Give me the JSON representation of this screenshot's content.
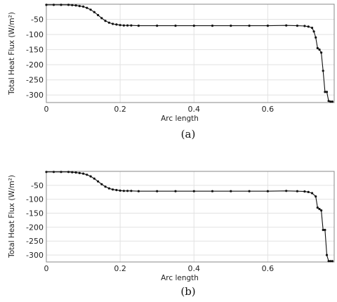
{
  "chart_data": [
    {
      "type": "line",
      "panel_label": "(a)",
      "xlabel": "Arc length",
      "ylabel": "Total Heat Flux (W/m²)",
      "xlim": [
        0,
        0.78
      ],
      "ylim": [
        -325,
        0
      ],
      "x_ticks": [
        "0",
        "0.2",
        "0.4",
        "0.6"
      ],
      "y_ticks": [
        "-50",
        "-100",
        "-150",
        "-200",
        "-250",
        "-300"
      ],
      "grid": true,
      "series": [
        {
          "x": [
            0,
            0.02,
            0.04,
            0.06,
            0.07,
            0.08,
            0.09,
            0.1,
            0.11,
            0.12,
            0.13,
            0.14,
            0.15,
            0.16,
            0.17,
            0.18,
            0.19,
            0.2,
            0.21,
            0.22,
            0.23,
            0.25,
            0.3,
            0.35,
            0.4,
            0.45,
            0.5,
            0.55,
            0.6,
            0.65,
            0.68,
            0.7,
            0.71,
            0.72,
            0.725,
            0.73,
            0.735,
            0.74,
            0.745,
            0.75,
            0.755,
            0.76,
            0.765,
            0.77,
            0.775
          ],
          "y": [
            -2,
            -2,
            -2,
            -2,
            -3,
            -4,
            -6,
            -8,
            -12,
            -18,
            -26,
            -36,
            -46,
            -55,
            -61,
            -65,
            -67,
            -69,
            -70,
            -70,
            -70,
            -71,
            -71,
            -71,
            -71,
            -71,
            -71,
            -71,
            -71,
            -70,
            -71,
            -72,
            -74,
            -78,
            -90,
            -110,
            -145,
            -150,
            -160,
            -220,
            -290,
            -290,
            -320,
            -322,
            -322
          ]
        }
      ]
    },
    {
      "type": "line",
      "panel_label": "(b)",
      "xlabel": "Arc length",
      "ylabel": "Total Heat Flux (W/m²)",
      "xlim": [
        0,
        0.78
      ],
      "ylim": [
        -325,
        0
      ],
      "x_ticks": [
        "0",
        "0.2",
        "0.4",
        "0.6"
      ],
      "y_ticks": [
        "-50",
        "-100",
        "-150",
        "-200",
        "-250",
        "-300"
      ],
      "grid": true,
      "series": [
        {
          "x": [
            0,
            0.02,
            0.04,
            0.06,
            0.07,
            0.08,
            0.09,
            0.1,
            0.11,
            0.12,
            0.13,
            0.14,
            0.15,
            0.16,
            0.17,
            0.18,
            0.19,
            0.2,
            0.21,
            0.22,
            0.23,
            0.25,
            0.3,
            0.35,
            0.4,
            0.45,
            0.5,
            0.55,
            0.6,
            0.65,
            0.68,
            0.7,
            0.71,
            0.72,
            0.73,
            0.735,
            0.74,
            0.745,
            0.75,
            0.755,
            0.76,
            0.765,
            0.77,
            0.775
          ],
          "y": [
            -2,
            -2,
            -2,
            -2,
            -3,
            -4,
            -6,
            -8,
            -12,
            -18,
            -26,
            -36,
            -46,
            -55,
            -61,
            -65,
            -67,
            -69,
            -70,
            -70,
            -70,
            -71,
            -71,
            -71,
            -71,
            -71,
            -71,
            -71,
            -71,
            -70,
            -71,
            -72,
            -74,
            -78,
            -90,
            -130,
            -135,
            -140,
            -210,
            -210,
            -300,
            -322,
            -322,
            -322
          ]
        }
      ]
    }
  ]
}
